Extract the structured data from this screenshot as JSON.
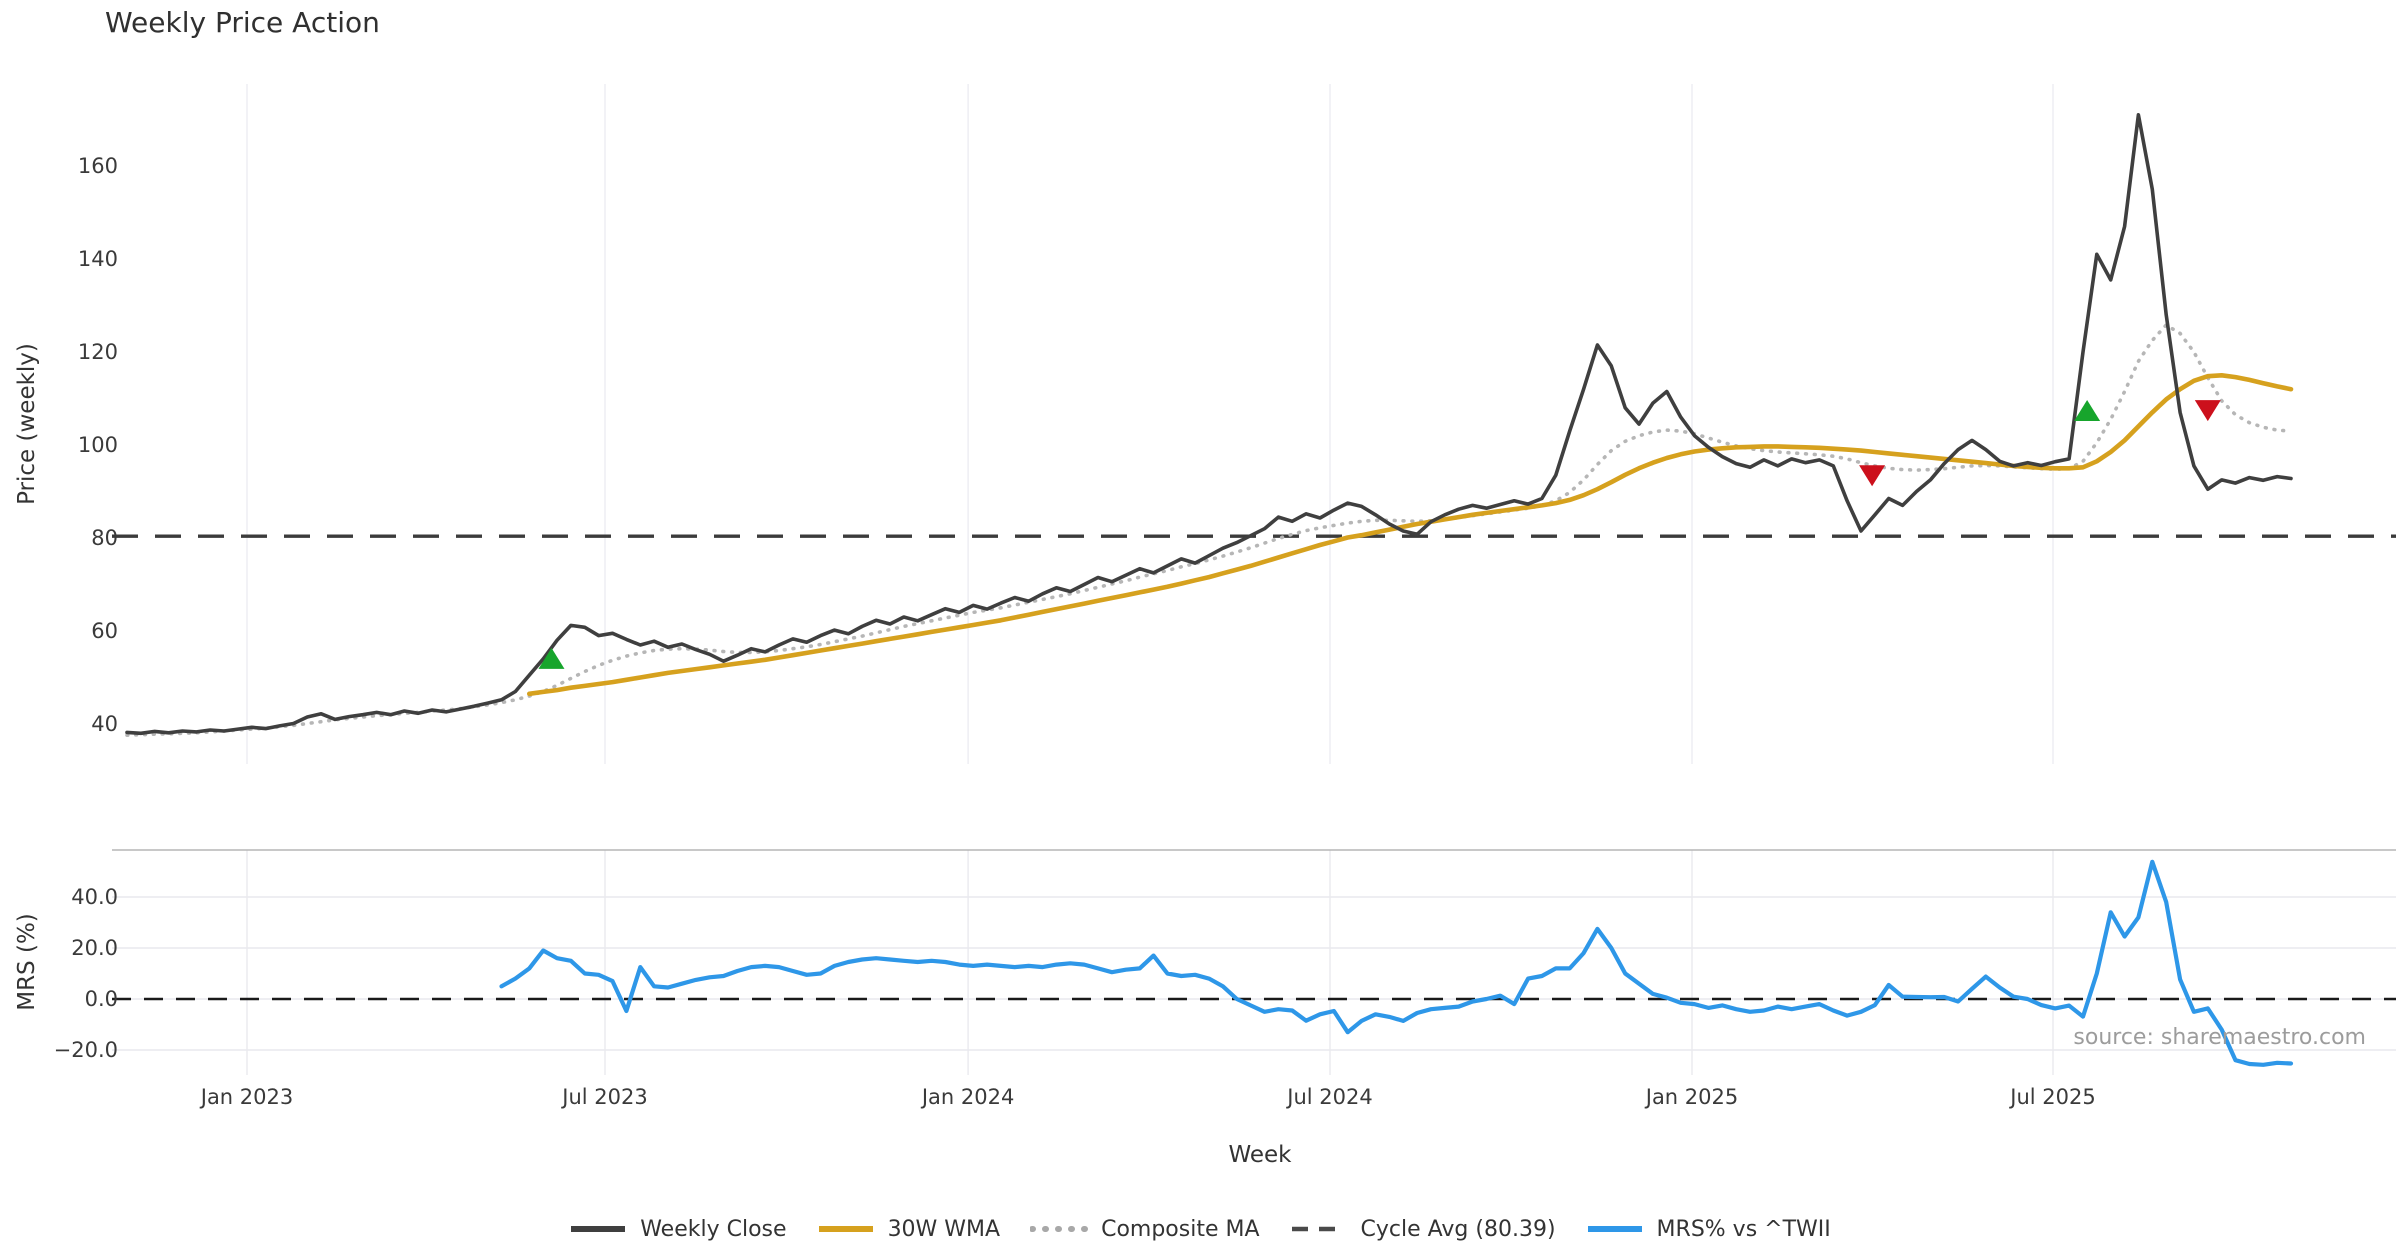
{
  "title": "Weekly Price Action",
  "xlabel": "Week",
  "source_text": "source: sharemaestro.com",
  "price_panel": {
    "ylabel": "Price (weekly)",
    "yticks": [
      {
        "label": "160",
        "value": 160
      },
      {
        "label": "140",
        "value": 140
      },
      {
        "label": "120",
        "value": 120
      },
      {
        "label": "100",
        "value": 100
      },
      {
        "label": "80",
        "value": 80
      },
      {
        "label": "60",
        "value": 60
      },
      {
        "label": "40",
        "value": 40
      }
    ]
  },
  "mrs_panel": {
    "ylabel": "MRS (%)",
    "yticks": [
      {
        "label": "40.0",
        "value": 40
      },
      {
        "label": "20.0",
        "value": 20
      },
      {
        "label": "0.0",
        "value": 0
      },
      {
        "label": "−20.0",
        "value": -20
      }
    ]
  },
  "xticks": [
    {
      "label": "Jan 2023",
      "week": 8.65
    },
    {
      "label": "Jul 2023",
      "week": 34.46
    },
    {
      "label": "Jan 2024",
      "week": 60.63
    },
    {
      "label": "Jul 2024",
      "week": 86.72
    },
    {
      "label": "Jan 2025",
      "week": 112.82
    },
    {
      "label": "Jul 2025",
      "week": 138.84
    }
  ],
  "colors": {
    "close": "#3f3f3f",
    "wma": "#d6a11e",
    "composite": "#b6b6b6",
    "cycle": "#3b3b3b",
    "mrs": "#2e97e8",
    "buy": "#17a52c",
    "sell": "#cc101c",
    "grid": "#ededf2",
    "mrs_grid": "#e9e9ee",
    "panel_border": "#b5b5b5",
    "zero_line": "#1a1a1a",
    "tick_text": "#3a3a3a",
    "source_text": "#9c9c9c"
  },
  "legend": [
    {
      "label": "Weekly Close",
      "swatch": "solid",
      "color": "#3f3f3f"
    },
    {
      "label": "30W WMA",
      "swatch": "solid",
      "color": "#d6a11e"
    },
    {
      "label": "Composite MA",
      "swatch": "dotted",
      "color": "#a8a8a8"
    },
    {
      "label": "Cycle Avg (80.39)",
      "swatch": "dashed",
      "color": "#4a4a4a"
    },
    {
      "label": "MRS% vs ^TWII",
      "swatch": "solid",
      "color": "#2e97e8"
    }
  ],
  "chart_data": [
    {
      "type": "line",
      "panel": "price",
      "title": "Weekly Price Action",
      "xlabel": "Week",
      "ylabel": "Price (weekly)",
      "x_unit": "week_index_from_2022-11",
      "ylim": [
        26,
        186
      ],
      "grid": "vertical-only",
      "legend_position": "bottom-center",
      "cycle_avg_value": 80.39,
      "series": [
        {
          "name": "Weekly Close",
          "start_week": 0,
          "values": [
            38.2,
            38.0,
            38.4,
            38.1,
            38.5,
            38.3,
            38.7,
            38.5,
            38.9,
            39.3,
            39.0,
            39.6,
            40.1,
            41.5,
            42.2,
            41.0,
            41.6,
            42.0,
            42.5,
            42.0,
            42.8,
            42.3,
            43.0,
            42.6,
            43.2,
            43.8,
            44.5,
            45.2,
            47.0,
            50.5,
            54.0,
            58.0,
            61.2,
            60.8,
            59.0,
            59.5,
            58.2,
            57.0,
            57.8,
            56.5,
            57.2,
            56.0,
            55.0,
            53.5,
            54.8,
            56.2,
            55.5,
            57.0,
            58.3,
            57.6,
            59.0,
            60.2,
            59.4,
            61.0,
            62.3,
            61.5,
            63.0,
            62.2,
            63.5,
            64.8,
            64.0,
            65.5,
            64.7,
            66.0,
            67.2,
            66.4,
            68.0,
            69.3,
            68.5,
            70.0,
            71.5,
            70.6,
            72.0,
            73.4,
            72.5,
            74.0,
            75.5,
            74.6,
            76.2,
            77.8,
            79.0,
            80.5,
            82.0,
            84.5,
            83.6,
            85.2,
            84.3,
            86.0,
            87.5,
            86.8,
            85.0,
            83.0,
            81.5,
            80.8,
            83.5,
            85.0,
            86.2,
            87.0,
            86.4,
            87.2,
            88.0,
            87.3,
            88.5,
            93.5,
            103.0,
            112.0,
            121.5,
            117.0,
            108.0,
            104.5,
            109.0,
            111.5,
            106.0,
            102.0,
            99.5,
            97.5,
            96.0,
            95.2,
            96.8,
            95.5,
            97.0,
            96.2,
            96.8,
            95.5,
            88.0,
            81.5,
            85.0,
            88.5,
            87.0,
            90.0,
            92.5,
            96.0,
            99.0,
            101.0,
            99.0,
            96.5,
            95.5,
            96.2,
            95.6,
            96.4,
            97.0,
            120.0,
            141.0,
            135.5,
            147.0,
            171.0,
            155.0,
            128.0,
            107.0,
            95.5,
            90.5,
            92.5,
            91.8,
            93.0,
            92.4,
            93.2,
            92.8
          ]
        },
        {
          "name": "30W WMA",
          "start_week": 29,
          "values": [
            46.5,
            46.9,
            47.3,
            47.8,
            48.2,
            48.6,
            49.0,
            49.5,
            50.0,
            50.5,
            51.0,
            51.4,
            51.8,
            52.2,
            52.6,
            53.0,
            53.4,
            53.8,
            54.3,
            54.8,
            55.3,
            55.8,
            56.3,
            56.8,
            57.3,
            57.8,
            58.3,
            58.8,
            59.3,
            59.8,
            60.3,
            60.8,
            61.3,
            61.8,
            62.3,
            62.9,
            63.5,
            64.1,
            64.7,
            65.3,
            65.9,
            66.5,
            67.1,
            67.7,
            68.3,
            68.9,
            69.5,
            70.2,
            70.9,
            71.6,
            72.4,
            73.2,
            74.0,
            74.9,
            75.8,
            76.7,
            77.6,
            78.5,
            79.3,
            80.1,
            80.6,
            81.2,
            81.8,
            82.4,
            83.0,
            83.5,
            84.0,
            84.5,
            85.0,
            85.4,
            85.8,
            86.2,
            86.6,
            87.0,
            87.5,
            88.2,
            89.2,
            90.5,
            92.0,
            93.6,
            95.0,
            96.2,
            97.2,
            98.0,
            98.6,
            99.0,
            99.3,
            99.5,
            99.6,
            99.7,
            99.7,
            99.6,
            99.5,
            99.4,
            99.2,
            99.0,
            98.8,
            98.5,
            98.2,
            97.9,
            97.6,
            97.3,
            97.0,
            96.7,
            96.4,
            96.1,
            95.8,
            95.5,
            95.3,
            95.1,
            95.0,
            95.0,
            95.2,
            96.5,
            98.5,
            101.0,
            104.0,
            107.0,
            109.8,
            112.0,
            113.8,
            114.8,
            115.0,
            114.6,
            114.0,
            113.3,
            112.6,
            112.0
          ]
        },
        {
          "name": "Composite MA",
          "start_week": 0,
          "values": [
            37.6,
            37.7,
            37.8,
            37.9,
            38.0,
            38.1,
            38.3,
            38.5,
            38.7,
            38.9,
            39.1,
            39.4,
            39.7,
            40.1,
            40.5,
            40.9,
            41.2,
            41.5,
            41.8,
            42.0,
            42.3,
            42.5,
            42.8,
            43.0,
            43.3,
            43.7,
            44.1,
            44.6,
            45.2,
            46.0,
            47.0,
            48.3,
            49.8,
            51.3,
            52.6,
            53.7,
            54.6,
            55.3,
            55.8,
            56.1,
            56.2,
            56.1,
            55.9,
            55.6,
            55.4,
            55.4,
            55.5,
            55.8,
            56.2,
            56.6,
            57.1,
            57.7,
            58.3,
            58.9,
            59.6,
            60.3,
            61.0,
            61.6,
            62.2,
            62.8,
            63.4,
            64.0,
            64.5,
            65.0,
            65.6,
            66.2,
            66.8,
            67.4,
            68.0,
            68.7,
            69.4,
            70.1,
            70.8,
            71.6,
            72.3,
            73.0,
            73.8,
            74.5,
            75.3,
            76.1,
            77.0,
            77.9,
            78.9,
            79.9,
            80.8,
            81.6,
            82.2,
            82.7,
            83.2,
            83.6,
            83.8,
            83.8,
            83.7,
            83.6,
            83.7,
            84.0,
            84.4,
            84.8,
            85.2,
            85.6,
            86.0,
            86.4,
            87.0,
            88.0,
            89.8,
            92.5,
            95.8,
            98.8,
            100.8,
            102.0,
            102.8,
            103.2,
            103.0,
            102.4,
            101.5,
            100.6,
            99.8,
            99.2,
            98.8,
            98.5,
            98.3,
            98.1,
            97.9,
            97.6,
            97.0,
            96.2,
            95.5,
            95.0,
            94.7,
            94.6,
            94.7,
            94.9,
            95.2,
            95.5,
            95.6,
            95.5,
            95.3,
            95.1,
            94.9,
            94.8,
            94.9,
            96.5,
            100.5,
            105.5,
            111.5,
            118.0,
            122.5,
            125.8,
            124.0,
            120.0,
            114.5,
            109.5,
            106.5,
            104.8,
            103.8,
            103.2,
            103.0
          ]
        },
        {
          "name": "Cycle Avg (80.39)",
          "type": "hline",
          "value": 80.39
        }
      ],
      "markers": [
        {
          "kind": "buy-signal",
          "shape": "triangle-up",
          "week": 30.6,
          "value": 54.0
        },
        {
          "kind": "sell-signal",
          "shape": "triangle-down",
          "week": 125.8,
          "value": 93.5
        },
        {
          "kind": "buy-signal",
          "shape": "triangle-up",
          "week": 141.3,
          "value": 107.3
        },
        {
          "kind": "sell-signal",
          "shape": "triangle-down",
          "week": 150.0,
          "value": 107.5
        }
      ]
    },
    {
      "type": "line",
      "panel": "mrs",
      "ylabel": "MRS (%)",
      "ylim": [
        -29.8,
        58.4
      ],
      "zero_line": true,
      "series": [
        {
          "name": "MRS% vs ^TWII",
          "start_week": 27,
          "values": [
            5.0,
            8.0,
            12.0,
            19.0,
            16.0,
            15.0,
            10.0,
            9.5,
            7.0,
            -4.7,
            12.5,
            5.0,
            4.5,
            6.0,
            7.5,
            8.5,
            9.0,
            11.0,
            12.5,
            13.0,
            12.5,
            11.0,
            9.5,
            10.0,
            13.0,
            14.5,
            15.5,
            16.0,
            15.5,
            15.0,
            14.5,
            15.0,
            14.5,
            13.5,
            13.0,
            13.5,
            13.0,
            12.5,
            13.0,
            12.5,
            13.5,
            14.0,
            13.5,
            12.0,
            10.5,
            11.5,
            12.0,
            17.0,
            10.0,
            9.0,
            9.5,
            8.0,
            5.0,
            0.0,
            -2.5,
            -5.0,
            -4.0,
            -4.5,
            -8.5,
            -6.0,
            -4.7,
            -13.0,
            -8.6,
            -6.0,
            -7.0,
            -8.6,
            -5.5,
            -4.0,
            -3.5,
            -3.0,
            -1.0,
            0.0,
            1.3,
            -2.0,
            8.0,
            9.0,
            12.0,
            12.0,
            18.0,
            27.5,
            20.0,
            10.0,
            6.0,
            2.0,
            0.5,
            -1.5,
            -2.0,
            -3.5,
            -2.5,
            -4.0,
            -5.0,
            -4.5,
            -3.0,
            -4.0,
            -3.0,
            -2.0,
            -4.5,
            -6.5,
            -5.0,
            -2.4,
            5.5,
            0.9,
            0.8,
            0.7,
            0.8,
            -1.0,
            4.0,
            8.8,
            4.5,
            0.9,
            0.0,
            -2.4,
            -3.7,
            -2.6,
            -6.9,
            10.0,
            34.0,
            24.5,
            32.0,
            53.8,
            38.0,
            7.7,
            -5.0,
            -3.7,
            -12.0,
            -24.0,
            -25.5,
            -25.8,
            -25.0,
            -25.3
          ]
        }
      ]
    }
  ]
}
